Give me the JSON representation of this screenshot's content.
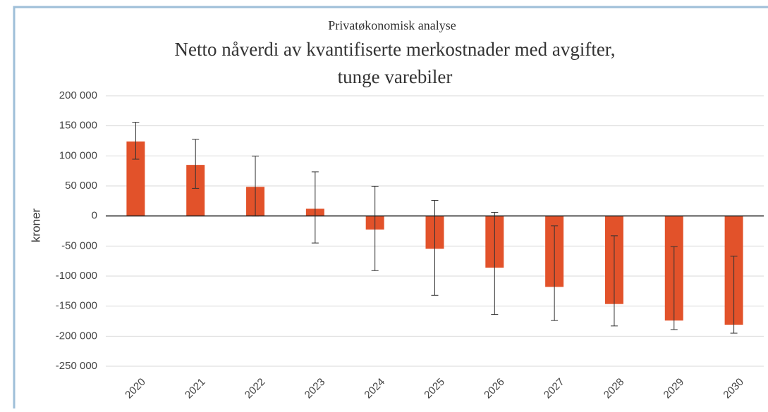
{
  "chart_data": {
    "type": "bar",
    "subtitle": "Privatøkonomisk analyse",
    "title": [
      "Netto nåverdi av kvantifiserte  merkostnader med avgifter,",
      "tunge varebiler"
    ],
    "y_label": "kroner",
    "categories": [
      "2020",
      "2021",
      "2022",
      "2023",
      "2024",
      "2025",
      "2026",
      "2027",
      "2028",
      "2029",
      "2030"
    ],
    "values": [
      124000,
      85000,
      48500,
      12000,
      -22500,
      -54500,
      -86000,
      -118000,
      -146500,
      -174000,
      -181000
    ],
    "errors_plus": [
      32000,
      42500,
      51000,
      61500,
      72000,
      80500,
      92000,
      101500,
      113500,
      123000,
      114000
    ],
    "errors_minus": [
      29500,
      39000,
      48500,
      57000,
      68500,
      77500,
      78000,
      56000,
      36500,
      15000,
      14000
    ],
    "color": "#e2522a",
    "ylim": [
      -250000,
      200000
    ],
    "yticks": [
      {
        "value": -250000,
        "label": "-250 000"
      },
      {
        "value": -200000,
        "label": "-200 000"
      },
      {
        "value": -150000,
        "label": "-150 000"
      },
      {
        "value": -100000,
        "label": "-100 000"
      },
      {
        "value": -50000,
        "label": "-50 000"
      },
      0,
      {
        "value": 50000,
        "label": "50 000"
      },
      {
        "value": 100000,
        "label": "100 000"
      },
      {
        "value": 150000,
        "label": "150 000"
      },
      {
        "value": 200000,
        "label": "200 000"
      }
    ],
    "grid": true
  }
}
